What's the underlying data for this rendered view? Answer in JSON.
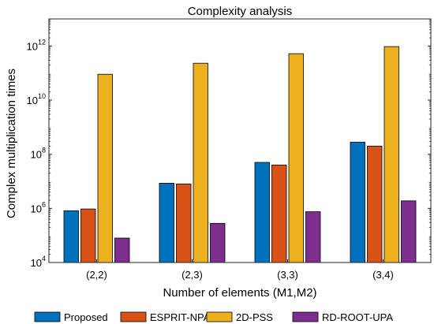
{
  "chart_data": {
    "type": "bar",
    "title": "Complexity analysis",
    "xlabel": "Number of elements (M1,M2)",
    "ylabel": "Complex multiplication times",
    "yscale": "log",
    "ylim": [
      10000,
      10000000000000
    ],
    "yticks": [
      {
        "base": "10",
        "exp": "4"
      },
      {
        "base": "10",
        "exp": "6"
      },
      {
        "base": "10",
        "exp": "8"
      },
      {
        "base": "10",
        "exp": "10"
      },
      {
        "base": "10",
        "exp": "12"
      }
    ],
    "categories": [
      "(2,2)",
      "(2,3)",
      "(3,3)",
      "(3,4)"
    ],
    "series": [
      {
        "name": "Proposed",
        "color": "#0072BD",
        "values": [
          820000,
          8500000,
          50000000,
          280000000
        ]
      },
      {
        "name": "ESPRIT-NPA",
        "color": "#D95319",
        "values": [
          950000,
          8000000,
          40000000,
          200000000
        ]
      },
      {
        "name": "2D-PSS",
        "color": "#EDB120",
        "values": [
          90000000000,
          230000000000,
          520000000000,
          950000000000
        ]
      },
      {
        "name": "RD-ROOT-UPA",
        "color": "#7E2F8E",
        "values": [
          80000,
          280000,
          750000,
          1900000
        ]
      }
    ],
    "legend": "bottom",
    "grid": false
  }
}
